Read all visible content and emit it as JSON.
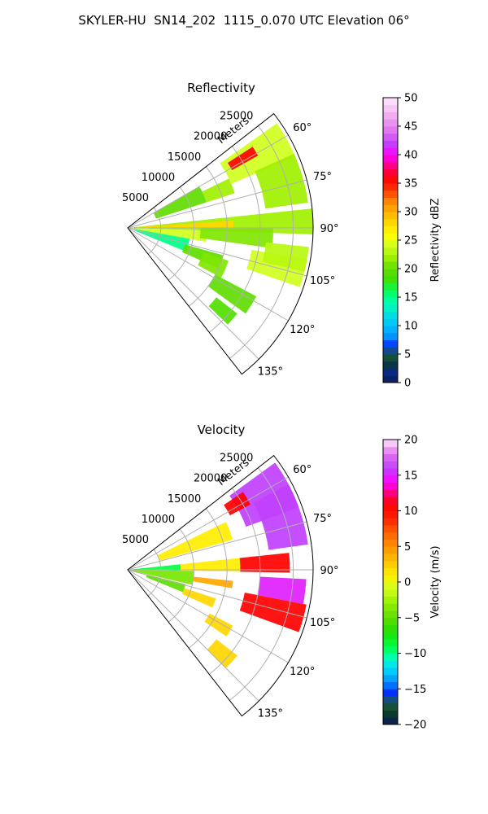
{
  "figure": {
    "title": "SKYLER-HU  SN14_202  1115_0.070 UTC Elevation 06°"
  },
  "chart_data": [
    {
      "type": "heatmap",
      "title": "Reflectivity",
      "projection": "polar-sector",
      "radial_label": "Meters",
      "range_ticks": [
        5000,
        10000,
        15000,
        20000,
        25000
      ],
      "range_tick_labels": [
        "5000",
        "10000",
        "15000",
        "20000",
        "25000"
      ],
      "range_max": 28000,
      "azimuth_range": [
        52,
        142
      ],
      "azimuth_ticks": [
        60,
        75,
        90,
        105,
        120,
        135
      ],
      "azimuth_tick_labels": [
        "60°",
        "75°",
        "90°",
        "105°",
        "120°",
        "135°"
      ],
      "grid": true,
      "colorbar": {
        "label": "Reflectivity dBZ",
        "min": 0,
        "max": 50,
        "ticks": [
          0,
          5,
          10,
          15,
          20,
          25,
          30,
          35,
          40,
          45,
          50
        ],
        "tick_labels": [
          "0",
          "5",
          "10",
          "15",
          "20",
          "25",
          "30",
          "35",
          "40",
          "45",
          "50"
        ]
      },
      "features": [
        {
          "az": [
            55,
            67
          ],
          "r": [
            17000,
            27500
          ],
          "value": 24
        },
        {
          "az": [
            57,
            61
          ],
          "r": [
            18000,
            22500
          ],
          "value": 36
        },
        {
          "az": [
            66,
            82
          ],
          "r": [
            21000,
            27500
          ],
          "value": 22
        },
        {
          "az": [
            64,
            72
          ],
          "r": [
            12500,
            17000
          ],
          "value": 22
        },
        {
          "az": [
            60,
            72
          ],
          "r": [
            4500,
            12500
          ],
          "value": 20
        },
        {
          "az": [
            84,
            92
          ],
          "r": [
            0,
            28000
          ],
          "value": 22
        },
        {
          "az": [
            86,
            90
          ],
          "r": [
            1500,
            16000
          ],
          "value": 28
        },
        {
          "az": [
            92,
            100
          ],
          "r": [
            0,
            12000
          ],
          "value": 24
        },
        {
          "az": [
            90,
            98
          ],
          "r": [
            11000,
            22000
          ],
          "value": 21
        },
        {
          "az": [
            100,
            109
          ],
          "r": [
            19000,
            27500
          ],
          "value": 24
        },
        {
          "az": [
            96,
            104
          ],
          "r": [
            21000,
            27500
          ],
          "value": 23
        },
        {
          "az": [
            100,
            112
          ],
          "r": [
            1000,
            9500
          ],
          "value": 15
        },
        {
          "az": [
            106,
            114
          ],
          "r": [
            9000,
            15000
          ],
          "value": 20
        },
        {
          "az": [
            108,
            118
          ],
          "r": [
            12000,
            16000
          ],
          "value": 21
        },
        {
          "az": [
            118,
            126
          ],
          "r": [
            15000,
            22000
          ],
          "value": 20
        },
        {
          "az": [
            128,
            134
          ],
          "r": [
            17000,
            21000
          ],
          "value": 19
        }
      ]
    },
    {
      "type": "heatmap",
      "title": "Velocity",
      "projection": "polar-sector",
      "radial_label": "Meters",
      "range_ticks": [
        5000,
        10000,
        15000,
        20000,
        25000
      ],
      "range_tick_labels": [
        "5000",
        "10000",
        "15000",
        "20000",
        "25000"
      ],
      "range_max": 28000,
      "azimuth_range": [
        52,
        142
      ],
      "azimuth_ticks": [
        60,
        75,
        90,
        105,
        120,
        135
      ],
      "azimuth_tick_labels": [
        "60°",
        "75°",
        "90°",
        "105°",
        "120°",
        "135°"
      ],
      "grid": true,
      "colorbar": {
        "label": "Velocity (m/s)",
        "min": -20,
        "max": 20,
        "ticks": [
          -20,
          -15,
          -10,
          -5,
          0,
          5,
          10,
          15,
          20
        ],
        "tick_labels": [
          "−20",
          "−15",
          "−10",
          "−5",
          "0",
          "5",
          "10",
          "15",
          "20"
        ]
      },
      "features": [
        {
          "az": [
            54,
            70
          ],
          "r": [
            19000,
            27500
          ],
          "value": 16
        },
        {
          "az": [
            62,
            82
          ],
          "r": [
            21500,
            27500
          ],
          "value": 16
        },
        {
          "az": [
            56,
            62
          ],
          "r": [
            17500,
            21000
          ],
          "value": 11
        },
        {
          "az": [
            64,
            74
          ],
          "r": [
            5000,
            16500
          ],
          "value": 1
        },
        {
          "az": [
            84,
            91
          ],
          "r": [
            0,
            8000
          ],
          "value": -9
        },
        {
          "az": [
            84,
            91
          ],
          "r": [
            8000,
            17000
          ],
          "value": 1
        },
        {
          "az": [
            84,
            91
          ],
          "r": [
            17000,
            24500
          ],
          "value": 11
        },
        {
          "az": [
            91,
            103
          ],
          "r": [
            0,
            10000
          ],
          "value": -4
        },
        {
          "az": [
            96,
            100
          ],
          "r": [
            10000,
            16000
          ],
          "value": 4
        },
        {
          "az": [
            93,
            101
          ],
          "r": [
            20000,
            27000
          ],
          "value": 15
        },
        {
          "az": [
            101,
            110
          ],
          "r": [
            18000,
            27500
          ],
          "value": 11
        },
        {
          "az": [
            104,
            112
          ],
          "r": [
            3000,
            9000
          ],
          "value": -5
        },
        {
          "az": [
            108,
            114
          ],
          "r": [
            9000,
            14000
          ],
          "value": 2
        },
        {
          "az": [
            118,
            124
          ],
          "r": [
            14000,
            18000
          ],
          "value": 2
        },
        {
          "az": [
            128,
            135
          ],
          "r": [
            17000,
            21000
          ],
          "value": 2
        }
      ]
    }
  ]
}
